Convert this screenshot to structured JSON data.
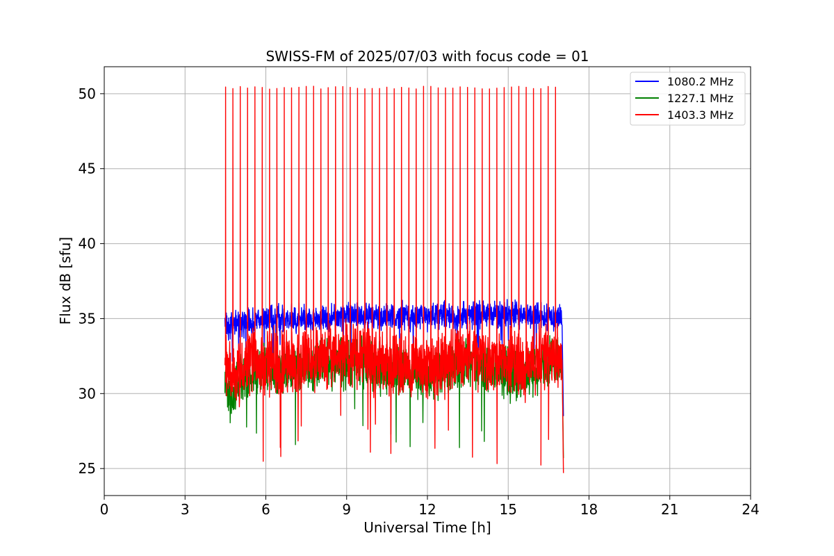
{
  "chart_data": {
    "type": "line",
    "title": "SWISS-FM of 2025/07/03 with focus code = 01",
    "xlabel": "Universal Time [h]",
    "ylabel": "Flux dB [sfu]",
    "xlim": [
      0,
      24
    ],
    "ylim": [
      23.2,
      51.8
    ],
    "xticks": [
      0,
      3,
      6,
      9,
      12,
      15,
      18,
      21,
      24
    ],
    "yticks": [
      25,
      30,
      35,
      40,
      45,
      50
    ],
    "grid": true,
    "legend_position": "top-right",
    "series": [
      {
        "name": "1080.2 MHz",
        "color": "#0000ff",
        "x": [
          4.48,
          4.6,
          4.8,
          5.0,
          5.5,
          6.0,
          6.5,
          7.0,
          7.5,
          8.0,
          8.5,
          9.0,
          9.5,
          10.0,
          10.5,
          11.0,
          11.5,
          12.0,
          12.5,
          13.0,
          13.5,
          14.0,
          14.5,
          15.0,
          15.5,
          16.0,
          16.5,
          17.0,
          17.05
        ],
        "y": [
          34.8,
          34.5,
          34.6,
          34.7,
          34.8,
          35.0,
          35.1,
          35.0,
          35.0,
          35.1,
          35.1,
          35.2,
          35.2,
          35.1,
          35.1,
          35.2,
          35.1,
          35.2,
          35.2,
          35.2,
          35.2,
          35.3,
          35.2,
          35.3,
          35.3,
          35.2,
          35.2,
          35.0,
          28.5
        ],
        "noise": 1.1
      },
      {
        "name": "1227.1 MHz",
        "color": "#008000",
        "x": [
          4.48,
          4.6,
          4.8,
          5.0,
          5.5,
          6.0,
          6.5,
          7.0,
          7.5,
          8.0,
          8.5,
          9.0,
          9.5,
          10.0,
          10.5,
          11.0,
          11.5,
          12.0,
          12.5,
          13.0,
          13.5,
          14.0,
          14.5,
          15.0,
          15.5,
          16.0,
          16.5,
          17.0,
          17.05
        ],
        "y": [
          31.5,
          30.0,
          29.5,
          31.0,
          31.5,
          31.8,
          31.5,
          31.5,
          31.8,
          32.0,
          32.0,
          32.0,
          32.2,
          31.8,
          31.5,
          31.5,
          31.5,
          31.3,
          31.5,
          31.8,
          32.0,
          31.8,
          31.5,
          31.3,
          31.2,
          31.5,
          32.0,
          32.0,
          25.7
        ],
        "noise": 2.0
      },
      {
        "name": "1403.3 MHz",
        "color": "#ff0000",
        "x": [
          4.48,
          4.6,
          4.8,
          5.0,
          5.5,
          6.0,
          6.5,
          7.0,
          7.5,
          8.0,
          8.5,
          9.0,
          9.5,
          10.0,
          10.5,
          11.0,
          11.5,
          12.0,
          12.5,
          13.0,
          13.5,
          14.0,
          14.5,
          15.0,
          15.5,
          16.0,
          16.5,
          17.0,
          17.05
        ],
        "y": [
          32.0,
          31.5,
          31.2,
          31.5,
          32.0,
          32.2,
          32.0,
          32.0,
          32.3,
          32.5,
          32.5,
          32.6,
          32.8,
          32.3,
          32.0,
          32.0,
          32.0,
          31.8,
          32.0,
          32.3,
          32.5,
          32.3,
          32.0,
          32.0,
          31.8,
          32.0,
          32.5,
          32.5,
          24.7
        ],
        "noise": 2.6,
        "spikes": {
          "start": 4.5,
          "end": 16.75,
          "count": 46,
          "peak": 50.4
        }
      }
    ]
  }
}
